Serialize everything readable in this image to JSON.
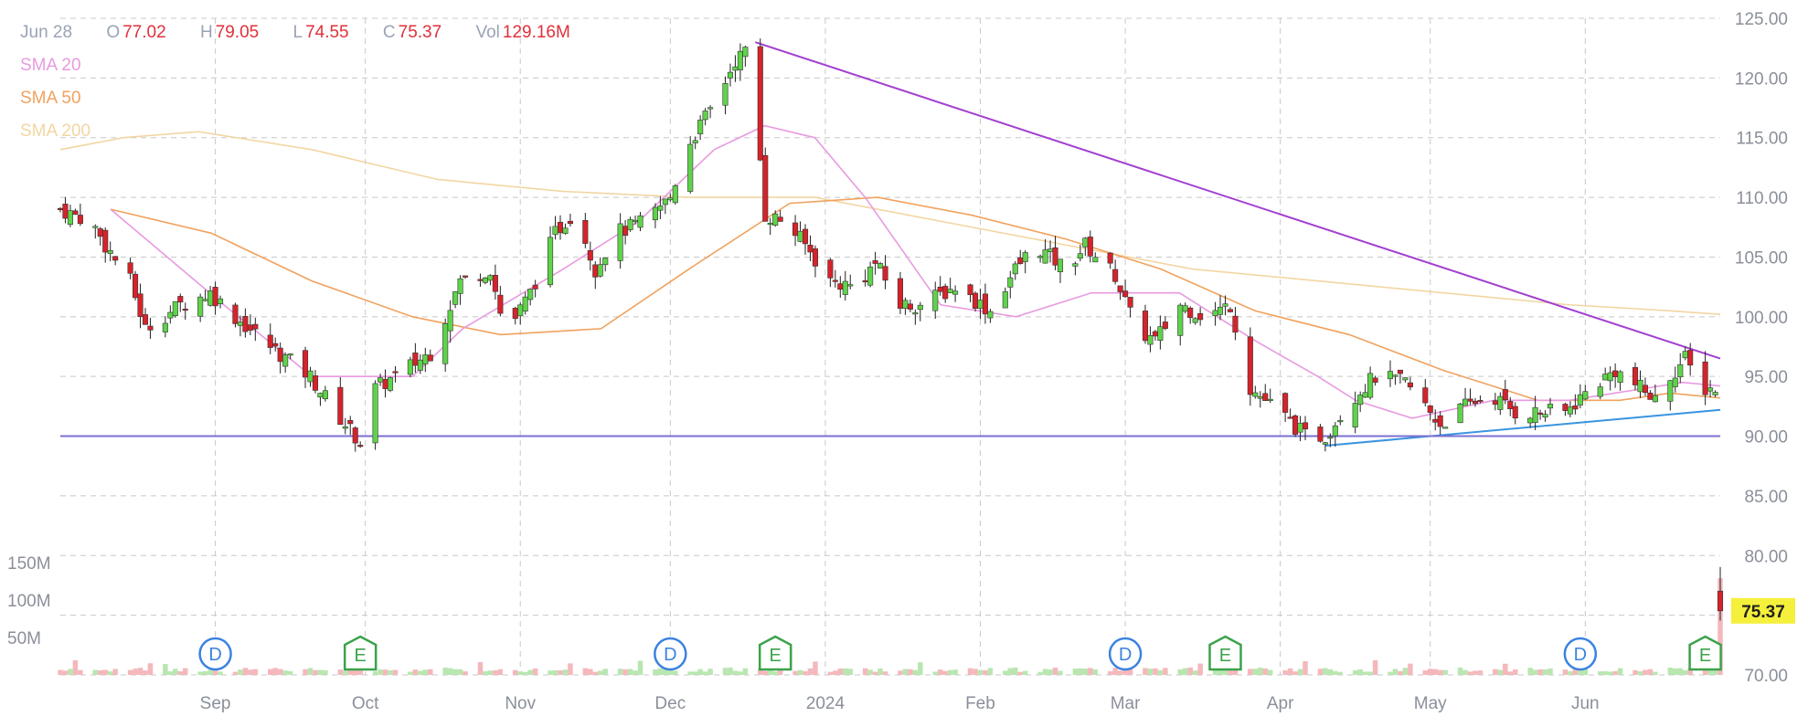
{
  "ohlc_header": {
    "date": "Jun 28",
    "o_label": "O",
    "o": "77.02",
    "h_label": "H",
    "h": "79.05",
    "l_label": "L",
    "l": "74.55",
    "c_label": "C",
    "c": "75.37",
    "vol_label": "Vol",
    "vol": "129.16M"
  },
  "legend": {
    "sma20": {
      "label": "SMA 20",
      "color": "#e89ae0"
    },
    "sma50": {
      "label": "SMA 50",
      "color": "#f0a25e"
    },
    "sma200": {
      "label": "SMA 200",
      "color": "#f2d6a2"
    }
  },
  "last_price": {
    "label": "75.37",
    "bg": "#f5f03c"
  },
  "colors": {
    "up": "#5fd34a",
    "down": "#d6232b",
    "grid": "#c8c8c8",
    "trend_down": "#a33fd1",
    "trend_up": "#3b94e0",
    "support": "#7b6fd1",
    "vol_up": "#b9e6b0",
    "vol_down": "#f4b8bc"
  },
  "chart_data": {
    "type": "candlestick",
    "y_axis": {
      "ticks": [
        70,
        75,
        80,
        85,
        90,
        95,
        100,
        105,
        110,
        115,
        120,
        125
      ],
      "tick_labels": [
        "70.00",
        "75.00",
        "80.00",
        "85.00",
        "90.00",
        "95.00",
        "100.00",
        "105.00",
        "110.00",
        "115.00",
        "120.00",
        "125.00"
      ],
      "ylim": [
        70,
        126
      ]
    },
    "volume_axis": {
      "tick_labels": [
        "150M",
        "100M",
        "50M"
      ],
      "ticks_m": [
        150,
        100,
        50
      ]
    },
    "x_axis": {
      "labels": [
        "Sep",
        "Oct",
        "Nov",
        "Dec",
        "2024",
        "Feb",
        "Mar",
        "Apr",
        "May",
        "Jun"
      ]
    },
    "events": [
      {
        "type": "dividend",
        "label": "D",
        "month": "Sep"
      },
      {
        "type": "earnings",
        "label": "E",
        "month": "Oct"
      },
      {
        "type": "dividend",
        "label": "D",
        "month": "Dec"
      },
      {
        "type": "earnings",
        "label": "E",
        "month": "Dec"
      },
      {
        "type": "dividend",
        "label": "D",
        "month": "Mar"
      },
      {
        "type": "earnings",
        "label": "E",
        "month": "Mar"
      },
      {
        "type": "dividend",
        "label": "D",
        "month": "Jun"
      },
      {
        "type": "earnings",
        "label": "E",
        "month": "Jun"
      }
    ],
    "price_anchors": [
      {
        "date": "Aug 1",
        "close": 109
      },
      {
        "date": "Aug 7",
        "close": 108
      },
      {
        "date": "Aug 10",
        "close": 106
      },
      {
        "date": "Aug 15",
        "close": 103
      },
      {
        "date": "Aug 18",
        "close": 99
      },
      {
        "date": "Aug 25",
        "close": 101
      },
      {
        "date": "Aug 31",
        "close": 102
      },
      {
        "date": "Sep 5",
        "close": 100
      },
      {
        "date": "Sep 12",
        "close": 97.5
      },
      {
        "date": "Sep 20",
        "close": 95
      },
      {
        "date": "Sep 26",
        "close": 91.5
      },
      {
        "date": "Sep 30",
        "close": 89.5
      },
      {
        "date": "Oct 3",
        "close": 94
      },
      {
        "date": "Oct 7",
        "close": 95
      },
      {
        "date": "Oct 14",
        "close": 97
      },
      {
        "date": "Oct 20",
        "close": 103
      },
      {
        "date": "Oct 26",
        "close": 104
      },
      {
        "date": "Oct 29",
        "close": 98.5
      },
      {
        "date": "Nov 3",
        "close": 102
      },
      {
        "date": "Nov 8",
        "close": 107
      },
      {
        "date": "Nov 12",
        "close": 109
      },
      {
        "date": "Nov 16",
        "close": 104
      },
      {
        "date": "Nov 20",
        "close": 107
      },
      {
        "date": "Nov 26",
        "close": 108
      },
      {
        "date": "Dec 1",
        "close": 110
      },
      {
        "date": "Dec 4",
        "close": 114
      },
      {
        "date": "Dec 7",
        "close": 116
      },
      {
        "date": "Dec 10",
        "close": 118
      },
      {
        "date": "Dec 14",
        "close": 121.5
      },
      {
        "date": "Dec 17",
        "close": 122.5
      },
      {
        "date": "Dec 20",
        "close": 108.5
      },
      {
        "date": "Dec 24",
        "close": 108
      },
      {
        "date": "Dec 28",
        "close": 106
      },
      {
        "date": "Jan 2",
        "close": 103
      },
      {
        "date": "Jan 7",
        "close": 102.5
      },
      {
        "date": "Jan 11",
        "close": 104.5
      },
      {
        "date": "Jan 16",
        "close": 101
      },
      {
        "date": "Jan 20",
        "close": 101
      },
      {
        "date": "Jan 27",
        "close": 102.5
      },
      {
        "date": "Feb 3",
        "close": 100.5
      },
      {
        "date": "Feb 8",
        "close": 104
      },
      {
        "date": "Feb 12",
        "close": 106
      },
      {
        "date": "Feb 18",
        "close": 104
      },
      {
        "date": "Feb 22",
        "close": 106
      },
      {
        "date": "Feb 28",
        "close": 103.5
      },
      {
        "date": "Mar 3",
        "close": 99
      },
      {
        "date": "Mar 7",
        "close": 98
      },
      {
        "date": "Mar 12",
        "close": 101
      },
      {
        "date": "Mar 17",
        "close": 100
      },
      {
        "date": "Mar 22",
        "close": 101
      },
      {
        "date": "Mar 26",
        "close": 94
      },
      {
        "date": "Apr 1",
        "close": 92
      },
      {
        "date": "Apr 6",
        "close": 90
      },
      {
        "date": "Apr 10",
        "close": 90
      },
      {
        "date": "Apr 15",
        "close": 93
      },
      {
        "date": "Apr 20",
        "close": 95
      },
      {
        "date": "Apr 26",
        "close": 94.5
      },
      {
        "date": "May 3",
        "close": 91
      },
      {
        "date": "May 8",
        "close": 92.5
      },
      {
        "date": "May 13",
        "close": 93.5
      },
      {
        "date": "May 18",
        "close": 92
      },
      {
        "date": "May 23",
        "close": 92
      },
      {
        "date": "May 28",
        "close": 92
      },
      {
        "date": "Jun 2",
        "close": 94
      },
      {
        "date": "Jun 7",
        "close": 95.5
      },
      {
        "date": "Jun 12",
        "close": 94
      },
      {
        "date": "Jun 15",
        "close": 93
      },
      {
        "date": "Jun 18",
        "close": 95
      },
      {
        "date": "Jun 21",
        "close": 96.5
      },
      {
        "date": "Jun 24",
        "close": 94
      },
      {
        "date": "Jun 27",
        "close": 94
      },
      {
        "date": "Jun 28",
        "close": 75.37
      }
    ],
    "sma20": [
      [
        8,
        109
      ],
      [
        26,
        101
      ],
      [
        40,
        95
      ],
      [
        56,
        95
      ],
      [
        64,
        99
      ],
      [
        80,
        104
      ],
      [
        92,
        108
      ],
      [
        104,
        114
      ],
      [
        112,
        116
      ],
      [
        120,
        115
      ],
      [
        128,
        110
      ],
      [
        140,
        101
      ],
      [
        152,
        100
      ],
      [
        164,
        102
      ],
      [
        178,
        102
      ],
      [
        190,
        98
      ],
      [
        200,
        95
      ],
      [
        206,
        93
      ],
      [
        215,
        91.5
      ],
      [
        228,
        93
      ],
      [
        240,
        93
      ],
      [
        252,
        94
      ],
      [
        258,
        94.5
      ],
      [
        264,
        94.2
      ]
    ],
    "sma50": [
      [
        8,
        109
      ],
      [
        24,
        107
      ],
      [
        40,
        103
      ],
      [
        56,
        100
      ],
      [
        70,
        98.5
      ],
      [
        86,
        99
      ],
      [
        100,
        104
      ],
      [
        116,
        109.5
      ],
      [
        130,
        110
      ],
      [
        145,
        108.5
      ],
      [
        160,
        106.5
      ],
      [
        175,
        104
      ],
      [
        190,
        100.5
      ],
      [
        205,
        98.5
      ],
      [
        220,
        95.5
      ],
      [
        235,
        93
      ],
      [
        248,
        93
      ],
      [
        256,
        93.6
      ],
      [
        264,
        93.2
      ]
    ],
    "sma200": [
      [
        0,
        114
      ],
      [
        10,
        115
      ],
      [
        22,
        115.5
      ],
      [
        40,
        114
      ],
      [
        60,
        111.5
      ],
      [
        80,
        110.5
      ],
      [
        100,
        110
      ],
      [
        120,
        110
      ],
      [
        140,
        108
      ],
      [
        160,
        106
      ],
      [
        180,
        104
      ],
      [
        200,
        103
      ],
      [
        220,
        102
      ],
      [
        240,
        101
      ],
      [
        256,
        100.5
      ],
      [
        264,
        100.2
      ]
    ],
    "trendlines": [
      {
        "name": "downtrend",
        "from": [
          "Dec 18",
          123
        ],
        "to": [
          "Jun 28",
          96.5
        ]
      },
      {
        "name": "uptrend",
        "from": [
          "Apr 10",
          89.2
        ],
        "to": [
          "Jun 28",
          92.2
        ]
      },
      {
        "name": "support",
        "from": [
          "Aug 1",
          90
        ],
        "to": [
          "Jun 28",
          90
        ]
      }
    ]
  }
}
